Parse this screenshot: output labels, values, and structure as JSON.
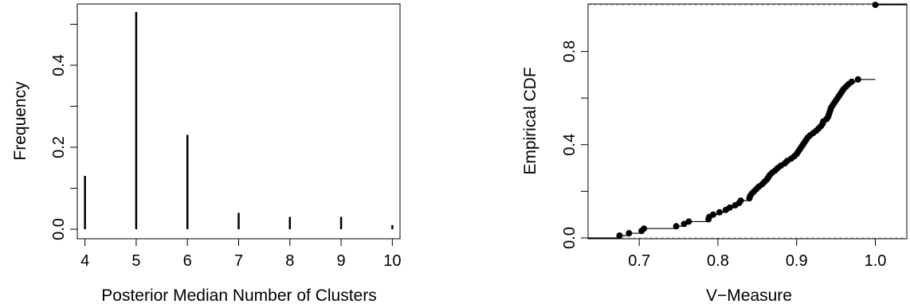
{
  "chart_data": [
    {
      "type": "bar",
      "style": "histogram-lines",
      "xlabel": "Posterior Median Number of Clusters",
      "ylabel": "Frequency",
      "x": [
        4,
        5,
        6,
        7,
        8,
        9,
        10
      ],
      "values": [
        0.13,
        0.53,
        0.23,
        0.04,
        0.03,
        0.03,
        0.01
      ],
      "xlim": [
        3.85,
        10.15
      ],
      "ylim": [
        0,
        0.53
      ],
      "xticks": [
        "4",
        "5",
        "6",
        "7",
        "8",
        "9",
        "10"
      ],
      "yticks": [
        {
          "value": 0.0,
          "label": "0.0"
        },
        {
          "value": 0.1,
          "label": ""
        },
        {
          "value": 0.2,
          "label": "0.2"
        },
        {
          "value": 0.3,
          "label": ""
        },
        {
          "value": 0.4,
          "label": "0.4"
        },
        {
          "value": 0.5,
          "label": ""
        }
      ],
      "grid": false,
      "color": "#000000"
    },
    {
      "type": "line",
      "style": "ecdf-step",
      "xlabel": "V−Measure",
      "ylabel": "Empirical CDF",
      "xlim": [
        0.635,
        1.04
      ],
      "ylim": [
        -0.0037,
        1.0037
      ],
      "xticks": [
        "0.7",
        "0.8",
        "0.9",
        "1.0"
      ],
      "xtick_values": [
        0.7,
        0.8,
        0.9,
        1.0
      ],
      "yticks": [
        {
          "value": 0.0,
          "label": "0.0"
        },
        {
          "value": 0.2,
          "label": ""
        },
        {
          "value": 0.4,
          "label": "0.4"
        },
        {
          "value": 0.6,
          "label": ""
        },
        {
          "value": 0.8,
          "label": "0.8"
        }
      ],
      "reference_lines": [
        0,
        1
      ],
      "reference_line_color": "#aaaaaa",
      "grid": false,
      "color": "#000000",
      "n": 100,
      "points": [
        {
          "x": 0.675,
          "y": 0.01
        },
        {
          "x": 0.687,
          "y": 0.02
        },
        {
          "x": 0.703,
          "y": 0.03
        },
        {
          "x": 0.706,
          "y": 0.04
        },
        {
          "x": 0.747,
          "y": 0.05
        },
        {
          "x": 0.757,
          "y": 0.06
        },
        {
          "x": 0.763,
          "y": 0.07
        },
        {
          "x": 0.788,
          "y": 0.08
        },
        {
          "x": 0.789,
          "y": 0.09
        },
        {
          "x": 0.794,
          "y": 0.1
        },
        {
          "x": 0.802,
          "y": 0.11
        },
        {
          "x": 0.81,
          "y": 0.12
        },
        {
          "x": 0.815,
          "y": 0.13
        },
        {
          "x": 0.822,
          "y": 0.14
        },
        {
          "x": 0.827,
          "y": 0.15
        },
        {
          "x": 0.829,
          "y": 0.16
        },
        {
          "x": 0.84,
          "y": 0.17
        },
        {
          "x": 0.841,
          "y": 0.18
        },
        {
          "x": 0.843,
          "y": 0.19
        },
        {
          "x": 0.846,
          "y": 0.2
        },
        {
          "x": 0.849,
          "y": 0.21
        },
        {
          "x": 0.852,
          "y": 0.22
        },
        {
          "x": 0.856,
          "y": 0.23
        },
        {
          "x": 0.859,
          "y": 0.24
        },
        {
          "x": 0.862,
          "y": 0.25
        },
        {
          "x": 0.864,
          "y": 0.26
        },
        {
          "x": 0.866,
          "y": 0.27
        },
        {
          "x": 0.869,
          "y": 0.28
        },
        {
          "x": 0.873,
          "y": 0.29
        },
        {
          "x": 0.876,
          "y": 0.3
        },
        {
          "x": 0.88,
          "y": 0.31
        },
        {
          "x": 0.885,
          "y": 0.32
        },
        {
          "x": 0.888,
          "y": 0.33
        },
        {
          "x": 0.893,
          "y": 0.34
        },
        {
          "x": 0.897,
          "y": 0.35
        },
        {
          "x": 0.9,
          "y": 0.36
        },
        {
          "x": 0.902,
          "y": 0.37
        },
        {
          "x": 0.904,
          "y": 0.38
        },
        {
          "x": 0.906,
          "y": 0.39
        },
        {
          "x": 0.908,
          "y": 0.4
        },
        {
          "x": 0.91,
          "y": 0.41
        },
        {
          "x": 0.912,
          "y": 0.42
        },
        {
          "x": 0.914,
          "y": 0.43
        },
        {
          "x": 0.917,
          "y": 0.44
        },
        {
          "x": 0.921,
          "y": 0.45
        },
        {
          "x": 0.925,
          "y": 0.46
        },
        {
          "x": 0.928,
          "y": 0.47
        },
        {
          "x": 0.931,
          "y": 0.48
        },
        {
          "x": 0.933,
          "y": 0.49
        },
        {
          "x": 0.934,
          "y": 0.5
        },
        {
          "x": 0.938,
          "y": 0.51
        },
        {
          "x": 0.94,
          "y": 0.52
        },
        {
          "x": 0.941,
          "y": 0.53
        },
        {
          "x": 0.942,
          "y": 0.54
        },
        {
          "x": 0.943,
          "y": 0.55
        },
        {
          "x": 0.944,
          "y": 0.56
        },
        {
          "x": 0.946,
          "y": 0.57
        },
        {
          "x": 0.948,
          "y": 0.58
        },
        {
          "x": 0.95,
          "y": 0.59
        },
        {
          "x": 0.952,
          "y": 0.6
        },
        {
          "x": 0.954,
          "y": 0.61
        },
        {
          "x": 0.956,
          "y": 0.62
        },
        {
          "x": 0.958,
          "y": 0.63
        },
        {
          "x": 0.96,
          "y": 0.64
        },
        {
          "x": 0.963,
          "y": 0.65
        },
        {
          "x": 0.966,
          "y": 0.66
        },
        {
          "x": 0.97,
          "y": 0.67
        },
        {
          "x": 0.978,
          "y": 0.68
        },
        {
          "x": 1.0,
          "y": 1.0
        }
      ]
    }
  ]
}
